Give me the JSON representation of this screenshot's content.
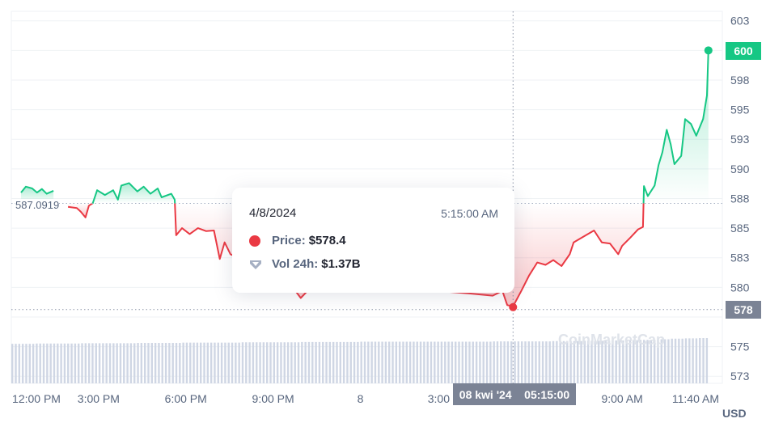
{
  "chart_data": {
    "type": "line",
    "x_range": [
      "2024-04-07T12:00",
      "2024-04-08T12:00"
    ],
    "ylim": [
      571.9,
      603.3
    ],
    "y_ticks": [
      602.5,
      600,
      597.5,
      595,
      592.5,
      590,
      587.5,
      585,
      582.5,
      580,
      577.5,
      575,
      572.5
    ],
    "y_tick_labels": [
      "603",
      "600",
      "598",
      "595",
      "593",
      "590",
      "588",
      "585",
      "583",
      "580",
      "578",
      "575",
      "573"
    ],
    "x_ticks": [
      {
        "t": "2024-04-07T12:00",
        "label": "12:00 PM"
      },
      {
        "t": "2024-04-07T15:00",
        "label": "3:00 PM"
      },
      {
        "t": "2024-04-07T18:00",
        "label": "6:00 PM"
      },
      {
        "t": "2024-04-07T21:00",
        "label": "9:00 PM"
      },
      {
        "t": "2024-04-08T00:00",
        "label": "8"
      },
      {
        "t": "2024-04-08T03:00",
        "label": "3:00"
      },
      {
        "t": "2024-04-08T09:00",
        "label": "9:00 AM"
      },
      {
        "t": "2024-04-08T11:40",
        "label": "11:40 AM"
      }
    ],
    "unit_label": "USD",
    "reference_price": 587.0919,
    "reference_label": "587.0919",
    "current_price_label": "600",
    "hover_price_label": "578",
    "colors": {
      "up": "#16c784",
      "down": "#ea3943",
      "volume": "#cfd6e4",
      "grid": "#eff2f5"
    },
    "price": [
      [
        "2024-04-07T12:20",
        588.0
      ],
      [
        "2024-04-07T12:30",
        588.5
      ],
      [
        "2024-04-07T12:43",
        588.35
      ],
      [
        "2024-04-07T12:53",
        588.0
      ],
      [
        "2024-04-07T13:03",
        588.3
      ],
      [
        "2024-04-07T13:13",
        587.9
      ],
      [
        "2024-04-07T13:27",
        588.15
      ],
      [
        "2024-04-07T13:57",
        586.8
      ],
      [
        "2024-04-07T14:15",
        586.7
      ],
      [
        "2024-04-07T14:23",
        586.4
      ],
      [
        "2024-04-07T14:33",
        585.9
      ],
      [
        "2024-04-07T14:40",
        586.9
      ],
      [
        "2024-04-07T14:48",
        587.1
      ],
      [
        "2024-04-07T14:57",
        588.2
      ],
      [
        "2024-04-07T15:13",
        587.8
      ],
      [
        "2024-04-07T15:30",
        588.2
      ],
      [
        "2024-04-07T15:40",
        587.4
      ],
      [
        "2024-04-07T15:47",
        588.6
      ],
      [
        "2024-04-07T16:03",
        588.8
      ],
      [
        "2024-04-07T16:20",
        588.1
      ],
      [
        "2024-04-07T16:33",
        588.5
      ],
      [
        "2024-04-07T16:47",
        587.9
      ],
      [
        "2024-04-07T17:02",
        588.35
      ],
      [
        "2024-04-07T17:10",
        587.6
      ],
      [
        "2024-04-07T17:30",
        587.9
      ],
      [
        "2024-04-07T17:37",
        587.4
      ],
      [
        "2024-04-07T17:40",
        584.4
      ],
      [
        "2024-04-07T17:52",
        585.0
      ],
      [
        "2024-04-07T18:08",
        584.5
      ],
      [
        "2024-04-07T18:25",
        585.0
      ],
      [
        "2024-04-07T18:42",
        584.75
      ],
      [
        "2024-04-07T18:58",
        584.8
      ],
      [
        "2024-04-07T19:10",
        582.4
      ],
      [
        "2024-04-07T19:20",
        583.8
      ],
      [
        "2024-04-07T19:32",
        582.8
      ],
      [
        "2024-04-07T19:57",
        582.3
      ],
      [
        "2024-04-07T20:30",
        581.5
      ],
      [
        "2024-04-07T21:03",
        580.7
      ],
      [
        "2024-04-07T21:37",
        580.2
      ],
      [
        "2024-04-07T21:57",
        579.1
      ],
      [
        "2024-04-07T22:18",
        580.0
      ],
      [
        "2024-04-07T23:17",
        580.2
      ],
      [
        "2024-04-08T00:23",
        579.8
      ],
      [
        "2024-04-08T01:30",
        580.1
      ],
      [
        "2024-04-08T02:37",
        579.7
      ],
      [
        "2024-04-08T03:43",
        579.5
      ],
      [
        "2024-04-08T04:33",
        579.3
      ],
      [
        "2024-04-08T04:53",
        579.7
      ],
      [
        "2024-04-08T05:03",
        578.5
      ],
      [
        "2024-04-08T05:15",
        578.4
      ],
      [
        "2024-04-08T05:32",
        579.7
      ],
      [
        "2024-04-08T05:48",
        581.0
      ],
      [
        "2024-04-08T06:05",
        582.1
      ],
      [
        "2024-04-08T06:22",
        581.9
      ],
      [
        "2024-04-08T06:38",
        582.3
      ],
      [
        "2024-04-08T06:55",
        581.8
      ],
      [
        "2024-04-08T07:12",
        582.8
      ],
      [
        "2024-04-08T07:20",
        583.8
      ],
      [
        "2024-04-08T07:37",
        584.2
      ],
      [
        "2024-04-08T08:02",
        584.8
      ],
      [
        "2024-04-08T08:18",
        583.8
      ],
      [
        "2024-04-08T08:35",
        583.7
      ],
      [
        "2024-04-08T08:52",
        582.8
      ],
      [
        "2024-04-08T09:00",
        583.5
      ],
      [
        "2024-04-08T09:17",
        584.2
      ],
      [
        "2024-04-08T09:33",
        584.9
      ],
      [
        "2024-04-08T09:43",
        585.1
      ],
      [
        "2024-04-08T09:45",
        588.55
      ],
      [
        "2024-04-08T09:53",
        587.7
      ],
      [
        "2024-04-08T10:07",
        588.6
      ],
      [
        "2024-04-08T10:15",
        590.3
      ],
      [
        "2024-04-08T10:23",
        591.4
      ],
      [
        "2024-04-08T10:32",
        593.3
      ],
      [
        "2024-04-08T10:40",
        592.1
      ],
      [
        "2024-04-08T10:48",
        590.4
      ],
      [
        "2024-04-08T11:02",
        591.1
      ],
      [
        "2024-04-08T11:10",
        594.2
      ],
      [
        "2024-04-08T11:22",
        593.8
      ],
      [
        "2024-04-08T11:33",
        592.8
      ],
      [
        "2024-04-08T11:47",
        594.2
      ],
      [
        "2024-04-08T11:55",
        596.2
      ],
      [
        "2024-04-08T11:58",
        600.0
      ]
    ],
    "volume_24h_billion": [
      1.3,
      1.3,
      1.31,
      1.31,
      1.31,
      1.32,
      1.32,
      1.32,
      1.32,
      1.33,
      1.33,
      1.33,
      1.34,
      1.34,
      1.34,
      1.34,
      1.35,
      1.35,
      1.35,
      1.35,
      1.36,
      1.36,
      1.36,
      1.36,
      1.37,
      1.37,
      1.37,
      1.37,
      1.37,
      1.37,
      1.37,
      1.37,
      1.37,
      1.38,
      1.38,
      1.38,
      1.38,
      1.39,
      1.39,
      1.4,
      1.4,
      1.41,
      1.42,
      1.43,
      1.45,
      1.47,
      1.48,
      1.49
    ],
    "watermark": "CoinMarketCap"
  },
  "tooltip": {
    "date": "4/8/2024",
    "time": "5:15:00 AM",
    "price_label": "Price:",
    "price_value": "$578.4",
    "volume_label": "Vol 24h:",
    "volume_value": "$1.37B"
  },
  "crosshair": {
    "date": "08 kwi '24",
    "time": "05:15:00"
  }
}
